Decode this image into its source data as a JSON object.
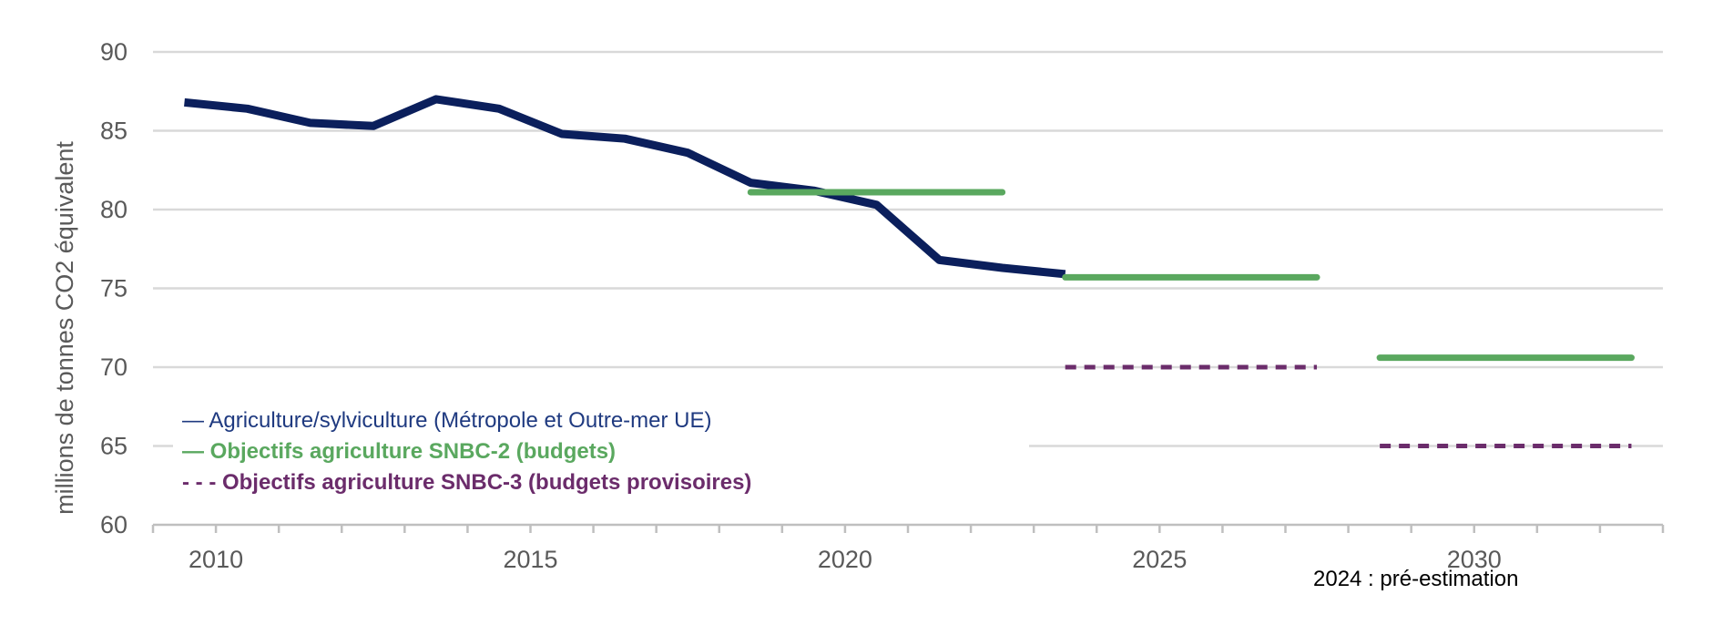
{
  "chart_data": {
    "type": "line",
    "title": "",
    "xlabel": "",
    "ylabel": "millions de tonnes CO2 équivalent",
    "xlim": [
      2009,
      2033
    ],
    "ylim": [
      60,
      90
    ],
    "xticks": [
      "2010",
      "2015",
      "2020",
      "2025",
      "2030"
    ],
    "yticks": [
      "60",
      "65",
      "70",
      "75",
      "80",
      "85",
      "90"
    ],
    "grid": true,
    "legend_position": "bottom-left",
    "note": "2024 : pré-estimation",
    "series": [
      {
        "name": "Agriculture/sylviculture (Métropole et Outre-mer UE)",
        "legend_label": "— Agriculture/sylviculture (Métropole et Outre-mer UE)",
        "color": "#0b1f5c",
        "style": "solid",
        "x": [
          2009.5,
          2010.5,
          2011.5,
          2012.5,
          2013.5,
          2014.5,
          2015.5,
          2016.5,
          2017.5,
          2018.5,
          2019.5,
          2020.5,
          2021.5,
          2022.5,
          2023.5
        ],
        "values": [
          86.8,
          86.4,
          85.5,
          85.3,
          87.0,
          86.4,
          84.8,
          84.5,
          83.6,
          81.7,
          81.2,
          80.3,
          76.8,
          76.3,
          75.9
        ]
      },
      {
        "name": "Objectifs agriculture SNBC-2 (budgets)",
        "legend_label": "— Objectifs agriculture SNBC-2 (budgets)",
        "color": "#5aa85f",
        "style": "segments",
        "segments": [
          {
            "from": 2018.5,
            "to": 2022.5,
            "value": 81.1
          },
          {
            "from": 2023.5,
            "to": 2027.5,
            "value": 75.7
          },
          {
            "from": 2028.5,
            "to": 2032.5,
            "value": 70.6
          }
        ]
      },
      {
        "name": "Objectifs agriculture SNBC-3 (budgets provisoires)",
        "legend_label": "- - - Objectifs agriculture SNBC-3 (budgets provisoires)",
        "color": "#6b2c6b",
        "style": "dashed-segments",
        "segments": [
          {
            "from": 2023.5,
            "to": 2027.5,
            "value": 70.0
          },
          {
            "from": 2028.5,
            "to": 2032.5,
            "value": 65.0
          }
        ]
      }
    ]
  }
}
